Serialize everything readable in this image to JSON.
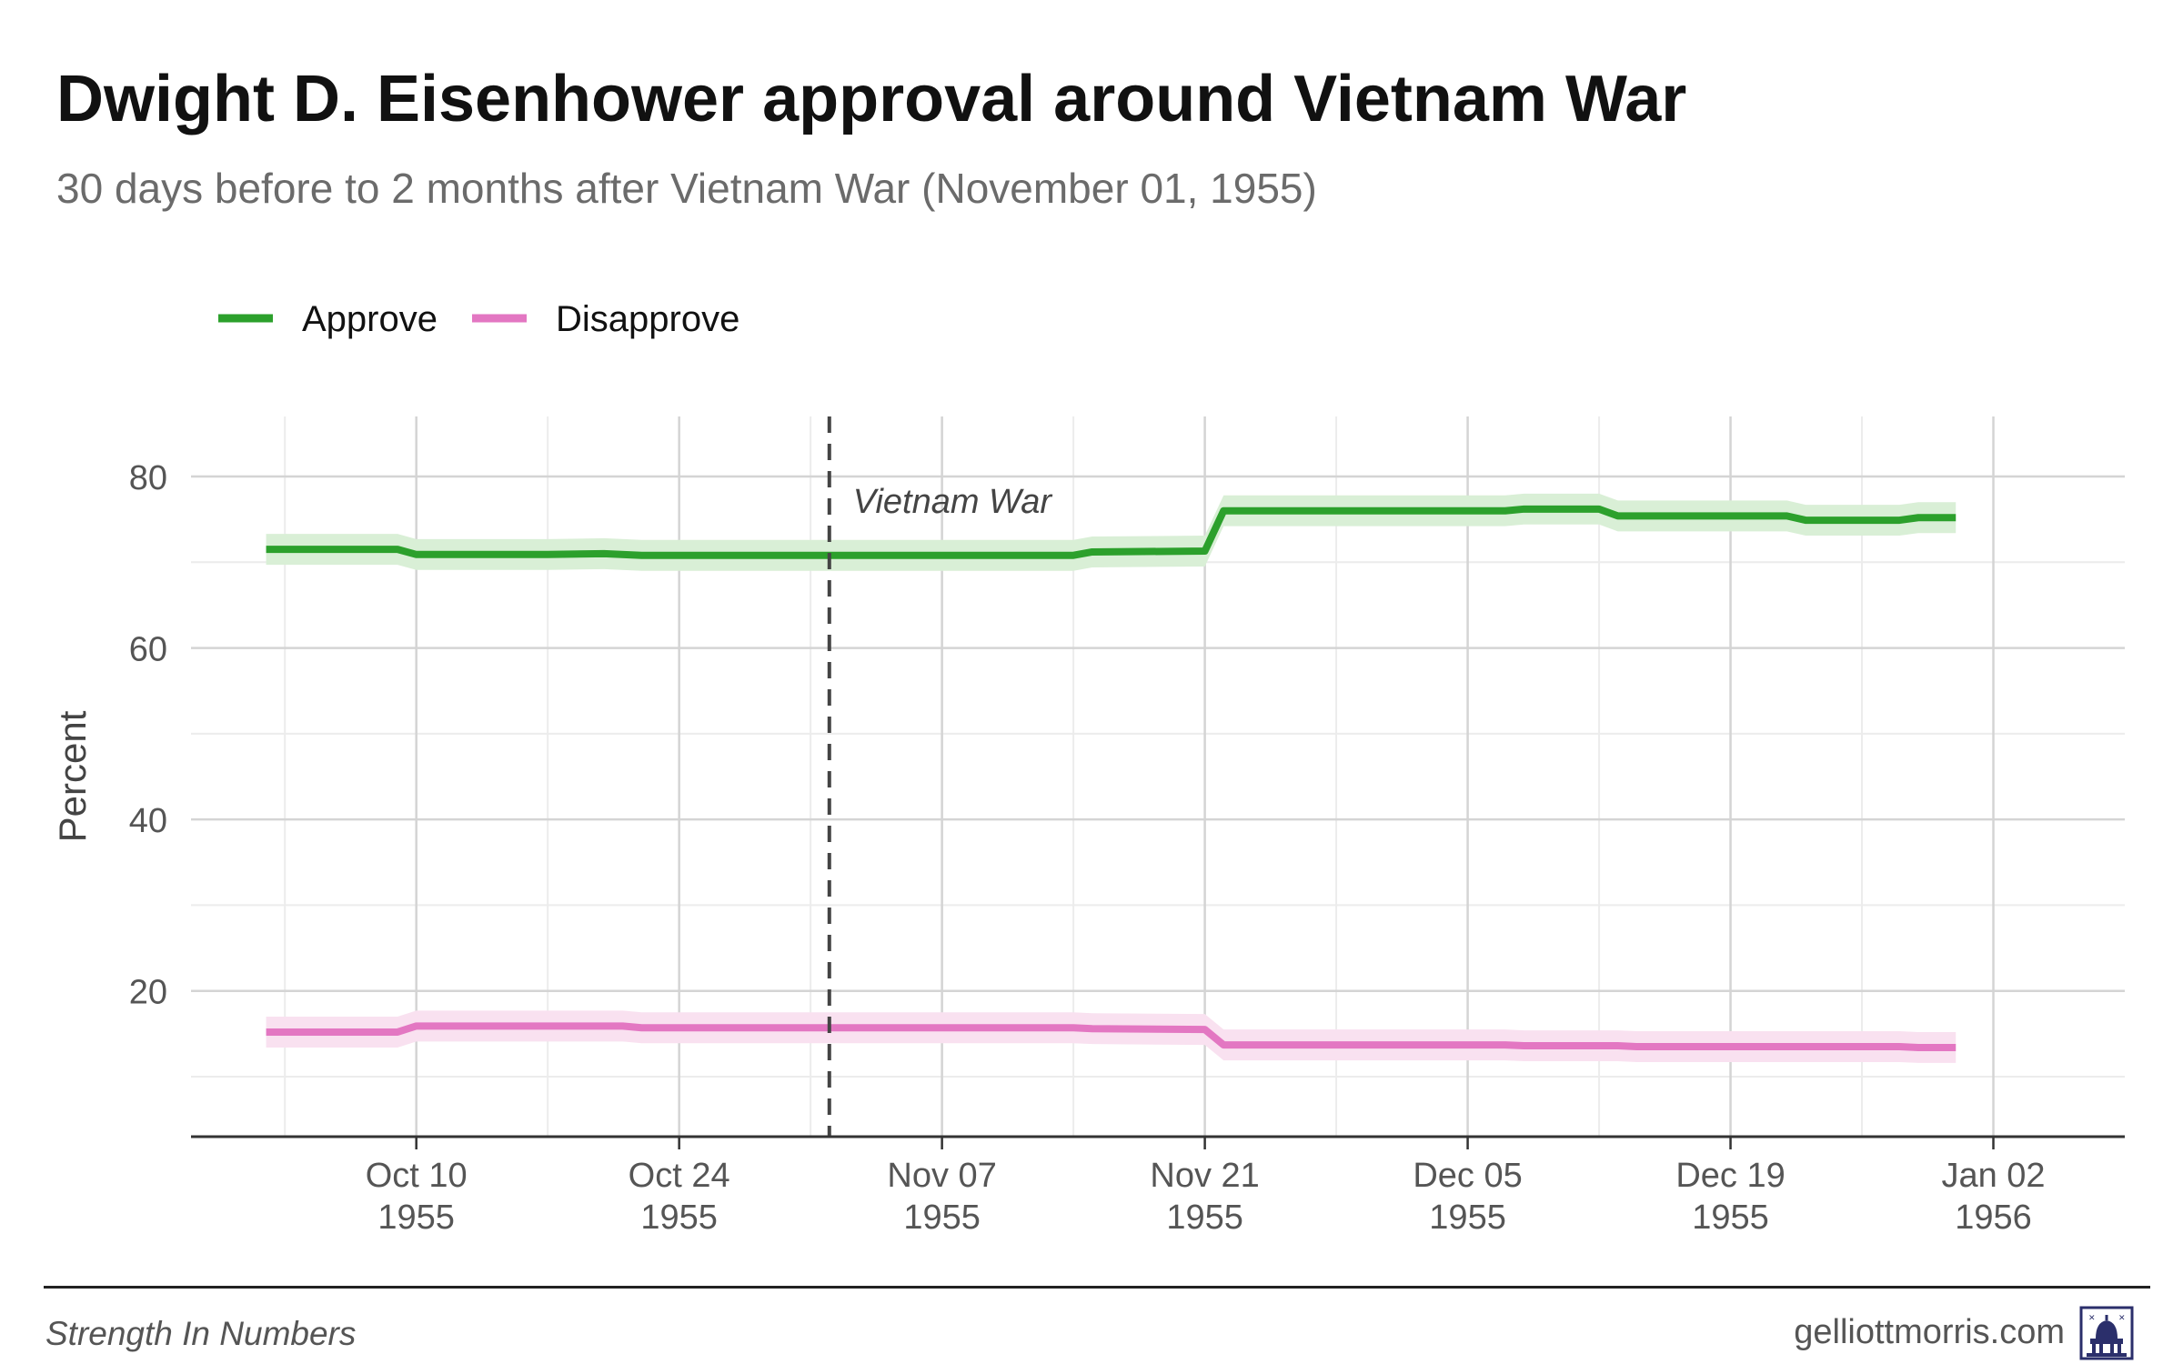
{
  "chart_data": {
    "type": "line",
    "title": "Dwight D. Eisenhower approval around Vietnam War",
    "subtitle": "30 days before to 2 months after Vietnam War (November 01, 1955)",
    "ylabel": "Percent",
    "xlabel": "",
    "ylim": [
      3,
      87
    ],
    "xlim": [
      "1955-09-28",
      "1956-01-09"
    ],
    "y_ticks": [
      20,
      40,
      60,
      80
    ],
    "x_ticks": [
      {
        "date": "1955-10-10",
        "label_top": "Oct 10",
        "label_bottom": "1955"
      },
      {
        "date": "1955-10-24",
        "label_top": "Oct 24",
        "label_bottom": "1955"
      },
      {
        "date": "1955-11-07",
        "label_top": "Nov 07",
        "label_bottom": "1955"
      },
      {
        "date": "1955-11-21",
        "label_top": "Nov 21",
        "label_bottom": "1955"
      },
      {
        "date": "1955-12-05",
        "label_top": "Dec 05",
        "label_bottom": "1955"
      },
      {
        "date": "1955-12-19",
        "label_top": "Dec 19",
        "label_bottom": "1955"
      },
      {
        "date": "1956-01-02",
        "label_top": "Jan 02",
        "label_bottom": "1956"
      }
    ],
    "grid": true,
    "legend_position": "top-left",
    "event": {
      "date": "1955-11-01",
      "label": "Vietnam War"
    },
    "series": [
      {
        "name": "Approve",
        "color": "#2ca02c",
        "band_color": "#d9efd6",
        "band_halfwidth": 1.8,
        "points": [
          [
            "1955-10-02",
            71.5
          ],
          [
            "1955-10-09",
            71.5
          ],
          [
            "1955-10-10",
            70.9
          ],
          [
            "1955-10-17",
            70.9
          ],
          [
            "1955-10-20",
            71.0
          ],
          [
            "1955-10-22",
            70.8
          ],
          [
            "1955-11-01",
            70.8
          ],
          [
            "1955-11-14",
            70.8
          ],
          [
            "1955-11-15",
            71.2
          ],
          [
            "1955-11-21",
            71.3
          ],
          [
            "1955-11-22",
            76.0
          ],
          [
            "1955-12-07",
            76.0
          ],
          [
            "1955-12-08",
            76.2
          ],
          [
            "1955-12-12",
            76.2
          ],
          [
            "1955-12-13",
            75.4
          ],
          [
            "1955-12-22",
            75.4
          ],
          [
            "1955-12-23",
            74.9
          ],
          [
            "1955-12-28",
            74.9
          ],
          [
            "1955-12-29",
            75.2
          ],
          [
            "1955-12-31",
            75.2
          ]
        ]
      },
      {
        "name": "Disapprove",
        "color": "#e377c2",
        "band_color": "#f9e1f0",
        "band_halfwidth": 1.8,
        "points": [
          [
            "1955-10-02",
            15.2
          ],
          [
            "1955-10-09",
            15.2
          ],
          [
            "1955-10-10",
            15.9
          ],
          [
            "1955-10-20",
            15.9
          ],
          [
            "1955-10-21",
            15.9
          ],
          [
            "1955-10-22",
            15.7
          ],
          [
            "1955-11-01",
            15.7
          ],
          [
            "1955-11-14",
            15.7
          ],
          [
            "1955-11-15",
            15.6
          ],
          [
            "1955-11-21",
            15.5
          ],
          [
            "1955-11-22",
            13.7
          ],
          [
            "1955-12-07",
            13.7
          ],
          [
            "1955-12-08",
            13.6
          ],
          [
            "1955-12-13",
            13.6
          ],
          [
            "1955-12-14",
            13.5
          ],
          [
            "1955-12-28",
            13.5
          ],
          [
            "1955-12-29",
            13.4
          ],
          [
            "1955-12-31",
            13.4
          ]
        ]
      }
    ]
  },
  "footer": {
    "left": "Strength In Numbers",
    "right": "gelliottmorris.com",
    "logo_icon": "capitol-dome-icon"
  }
}
